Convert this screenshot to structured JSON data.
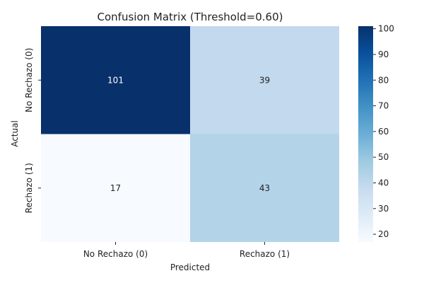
{
  "chart_data": {
    "type": "heatmap",
    "title": "Confusion Matrix (Threshold=0.60)",
    "xlabel": "Predicted",
    "ylabel": "Actual",
    "x_categories": [
      "No Rechazo (0)",
      "Rechazo (1)"
    ],
    "y_categories": [
      "No Rechazo (0)",
      "Rechazo (1)"
    ],
    "values": [
      [
        101,
        39
      ],
      [
        17,
        43
      ]
    ],
    "colormap": "Blues",
    "colorbar": {
      "range": [
        17,
        101
      ],
      "ticks": [
        20,
        30,
        40,
        50,
        60,
        70,
        80,
        90,
        100
      ]
    }
  },
  "colors": {
    "ramp": [
      "#f7fbff",
      "#deebf7",
      "#c6dbef",
      "#9ecae1",
      "#6baed6",
      "#4292c6",
      "#2171b5",
      "#08519c",
      "#08306b"
    ]
  }
}
